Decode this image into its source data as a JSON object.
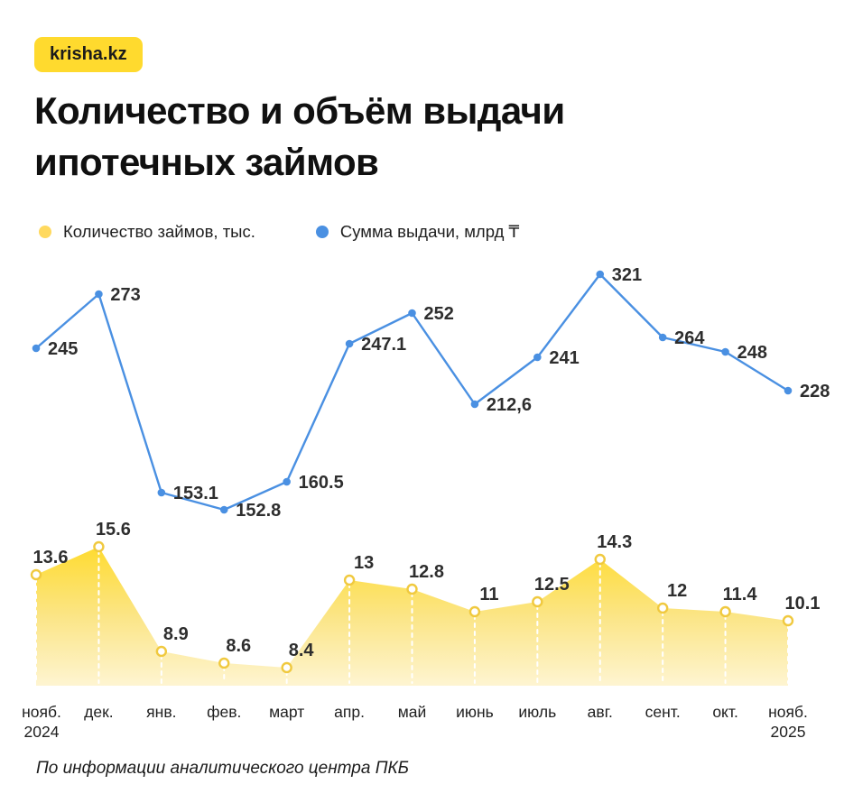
{
  "header": {
    "logo": "krisha.kz",
    "title_line1": "Количество и объём выдачи",
    "title_line2": "ипотечных займов"
  },
  "legend": {
    "count_label": "Количество займов, тыс.",
    "sum_label": "Сумма выдачи, млрд ₸"
  },
  "footer": {
    "source": "По информации аналитического центра ПКБ"
  },
  "colors": {
    "brand_yellow": "#FFDA2E",
    "legend_yellow": "#FFD95E",
    "blue": "#4A90E2",
    "data_label": "#2E2E2E",
    "axis_label": "#1F1F1F",
    "yellow_point_stroke": "#F0C93F",
    "area_gradient": [
      "#FFDB2E",
      "#FBE586",
      "#FEF5D3"
    ],
    "guide_dash": "#FFFFFF"
  },
  "chart_data": {
    "type": "line",
    "categories": [
      "нояб.\n2024",
      "дек.",
      "янв.",
      "фев.",
      "март",
      "апр.",
      "май",
      "июнь",
      "июль",
      "авг.",
      "сент.",
      "окт.",
      "нояб.\n2025"
    ],
    "series": [
      {
        "name": "Количество займов, тыс.",
        "type": "area",
        "color": "#FFD95E",
        "values": [
          13.6,
          15.6,
          8.9,
          8.6,
          8.4,
          13,
          12.8,
          11,
          12.5,
          14.3,
          12,
          11.4,
          10.1
        ],
        "labels": [
          "13.6",
          "15.6",
          "8.9",
          "8.6",
          "8.4",
          "13",
          "12.8",
          "11",
          "12.5",
          "14.3",
          "12",
          "11.4",
          "10.1"
        ]
      },
      {
        "name": "Сумма выдачи, млрд ₸",
        "type": "line",
        "color": "#4A90E2",
        "values": [
          245,
          273,
          153.1,
          152.8,
          160.5,
          247.1,
          252,
          212.6,
          241,
          321,
          264,
          248,
          228
        ],
        "labels": [
          "245",
          "273",
          "153.1",
          "152.8",
          "160.5",
          "247.1",
          "252",
          "212,6",
          "241",
          "321",
          "264",
          "248",
          "228"
        ]
      }
    ],
    "ylim_line": [
      140,
      330
    ],
    "ylim_area": [
      0,
      16
    ],
    "grid": false,
    "legend_position": "top"
  }
}
